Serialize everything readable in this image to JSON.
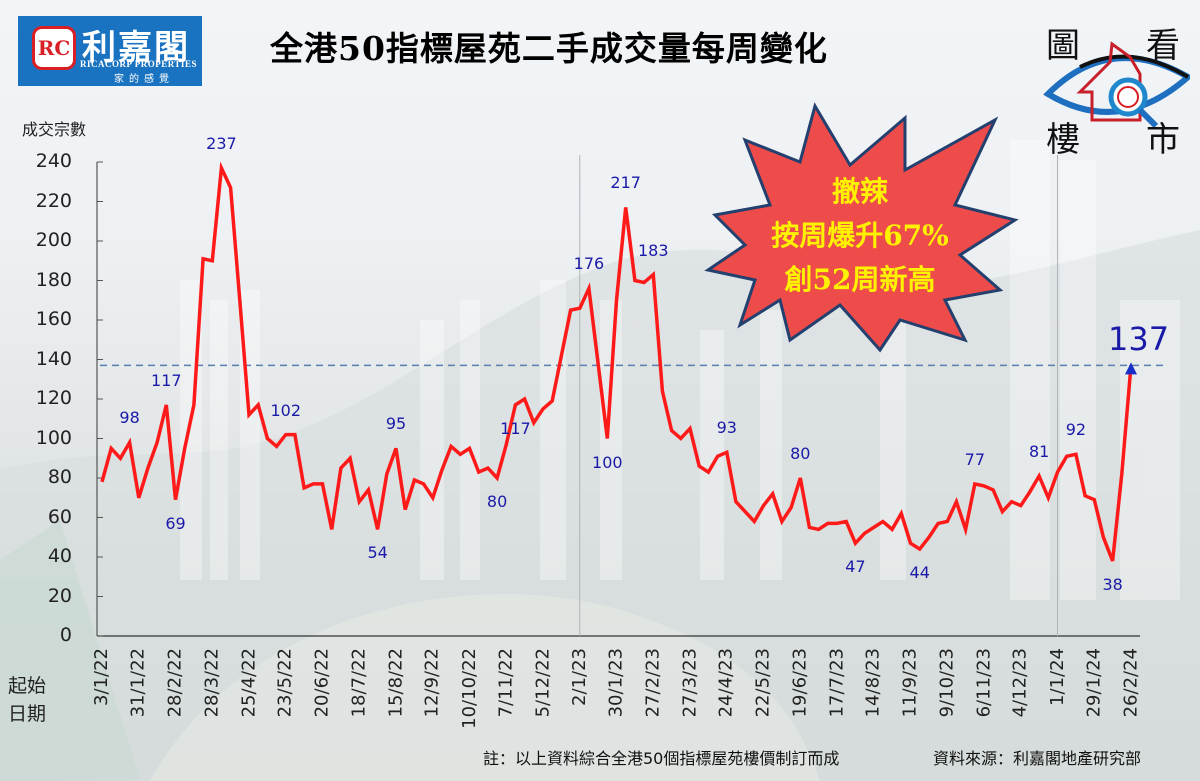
{
  "header": {
    "title": "全港50指標屋苑二手成交量每周變化",
    "logo": {
      "mark": "RC",
      "name": "利嘉閣",
      "english": "RICACORP PROPERTIES",
      "slogan": "家的感覺"
    },
    "badge": {
      "chars": [
        "圖",
        "看",
        "樓",
        "市"
      ]
    }
  },
  "axes": {
    "y_title": "成交宗數",
    "x_title_line1": "起始",
    "x_title_line2": "日期"
  },
  "callout": {
    "line1": "撤辣",
    "line2": "按周爆升67%",
    "line3": "創52周新高",
    "fill_color": "#ee4b4b",
    "text_color": "#fff200"
  },
  "highlight": {
    "value_label": "137",
    "reference_line_value": 137
  },
  "footer": {
    "note": "註：以上資料綜合全港50個指標屋苑樓價制訂而成",
    "source": "資料來源：利嘉閣地產研究部"
  },
  "colors": {
    "line": "#ff1a1a",
    "labels": "#1a1aa8",
    "reference_line": "#5a7fae",
    "logo_blue": "#1a73c0"
  },
  "chart_data": {
    "type": "line",
    "title": "全港50指標屋苑二手成交量每周變化",
    "xlabel": "起始日期",
    "ylabel": "成交宗數",
    "ylim": [
      0,
      240
    ],
    "yticks": [
      0,
      20,
      40,
      60,
      80,
      100,
      120,
      140,
      160,
      180,
      200,
      220,
      240
    ],
    "grid": false,
    "legend": "none",
    "x_tick_labels": [
      "3/1/22",
      "31/1/22",
      "28/2/22",
      "28/3/22",
      "25/4/22",
      "23/5/22",
      "20/6/22",
      "18/7/22",
      "15/8/22",
      "12/9/22",
      "10/10/22",
      "7/11/22",
      "5/12/22",
      "2/1/23",
      "30/1/23",
      "27/2/23",
      "27/3/23",
      "24/4/23",
      "22/5/23",
      "19/6/23",
      "17/7/23",
      "14/8/23",
      "11/9/23",
      "9/10/23",
      "6/11/23",
      "4/12/23",
      "1/1/24",
      "29/1/24",
      "26/2/24"
    ],
    "x_tick_every_weeks": 4,
    "series": [
      {
        "name": "成交宗數",
        "values": [
          78,
          95,
          90,
          98,
          70,
          85,
          98,
          117,
          69,
          95,
          117,
          191,
          190,
          237,
          227,
          170,
          112,
          117,
          100,
          96,
          102,
          102,
          75,
          77,
          77,
          54,
          85,
          90,
          68,
          74,
          54,
          82,
          95,
          64,
          79,
          77,
          70,
          84,
          96,
          92,
          95,
          83,
          85,
          80,
          97,
          117,
          120,
          108,
          115,
          119,
          142,
          165,
          166,
          176,
          138,
          100,
          170,
          217,
          180,
          179,
          183,
          124,
          104,
          100,
          105,
          86,
          83,
          91,
          93,
          68,
          63,
          58,
          66,
          72,
          58,
          65,
          80,
          55,
          54,
          57,
          57,
          58,
          47,
          52,
          55,
          58,
          54,
          62,
          47,
          44,
          50,
          57,
          58,
          68,
          54,
          77,
          76,
          74,
          63,
          68,
          66,
          73,
          81,
          70,
          83,
          91,
          92,
          71,
          69,
          50,
          38,
          82,
          137
        ]
      }
    ],
    "annotations": [
      {
        "week": 3,
        "label": "98"
      },
      {
        "week": 7,
        "label": "117"
      },
      {
        "week": 8,
        "label": "69"
      },
      {
        "week": 13,
        "label": "237"
      },
      {
        "week": 20,
        "label": "102"
      },
      {
        "week": 30,
        "label": "54"
      },
      {
        "week": 32,
        "label": "95"
      },
      {
        "week": 43,
        "label": "80"
      },
      {
        "week": 45,
        "label": "117"
      },
      {
        "week": 53,
        "label": "176"
      },
      {
        "week": 55,
        "label": "100"
      },
      {
        "week": 57,
        "label": "217"
      },
      {
        "week": 60,
        "label": "183"
      },
      {
        "week": 68,
        "label": "93"
      },
      {
        "week": 76,
        "label": "80"
      },
      {
        "week": 82,
        "label": "47"
      },
      {
        "week": 89,
        "label": "44"
      },
      {
        "week": 95,
        "label": "77"
      },
      {
        "week": 102,
        "label": "81"
      },
      {
        "week": 106,
        "label": "92"
      },
      {
        "week": 110,
        "label": "38"
      },
      {
        "week": 112,
        "label": "137"
      }
    ],
    "reference_lines": [
      {
        "type": "horizontal",
        "value": 137,
        "style": "dashed"
      }
    ],
    "year_dividers": [
      "2/1/23",
      "1/1/24"
    ]
  }
}
